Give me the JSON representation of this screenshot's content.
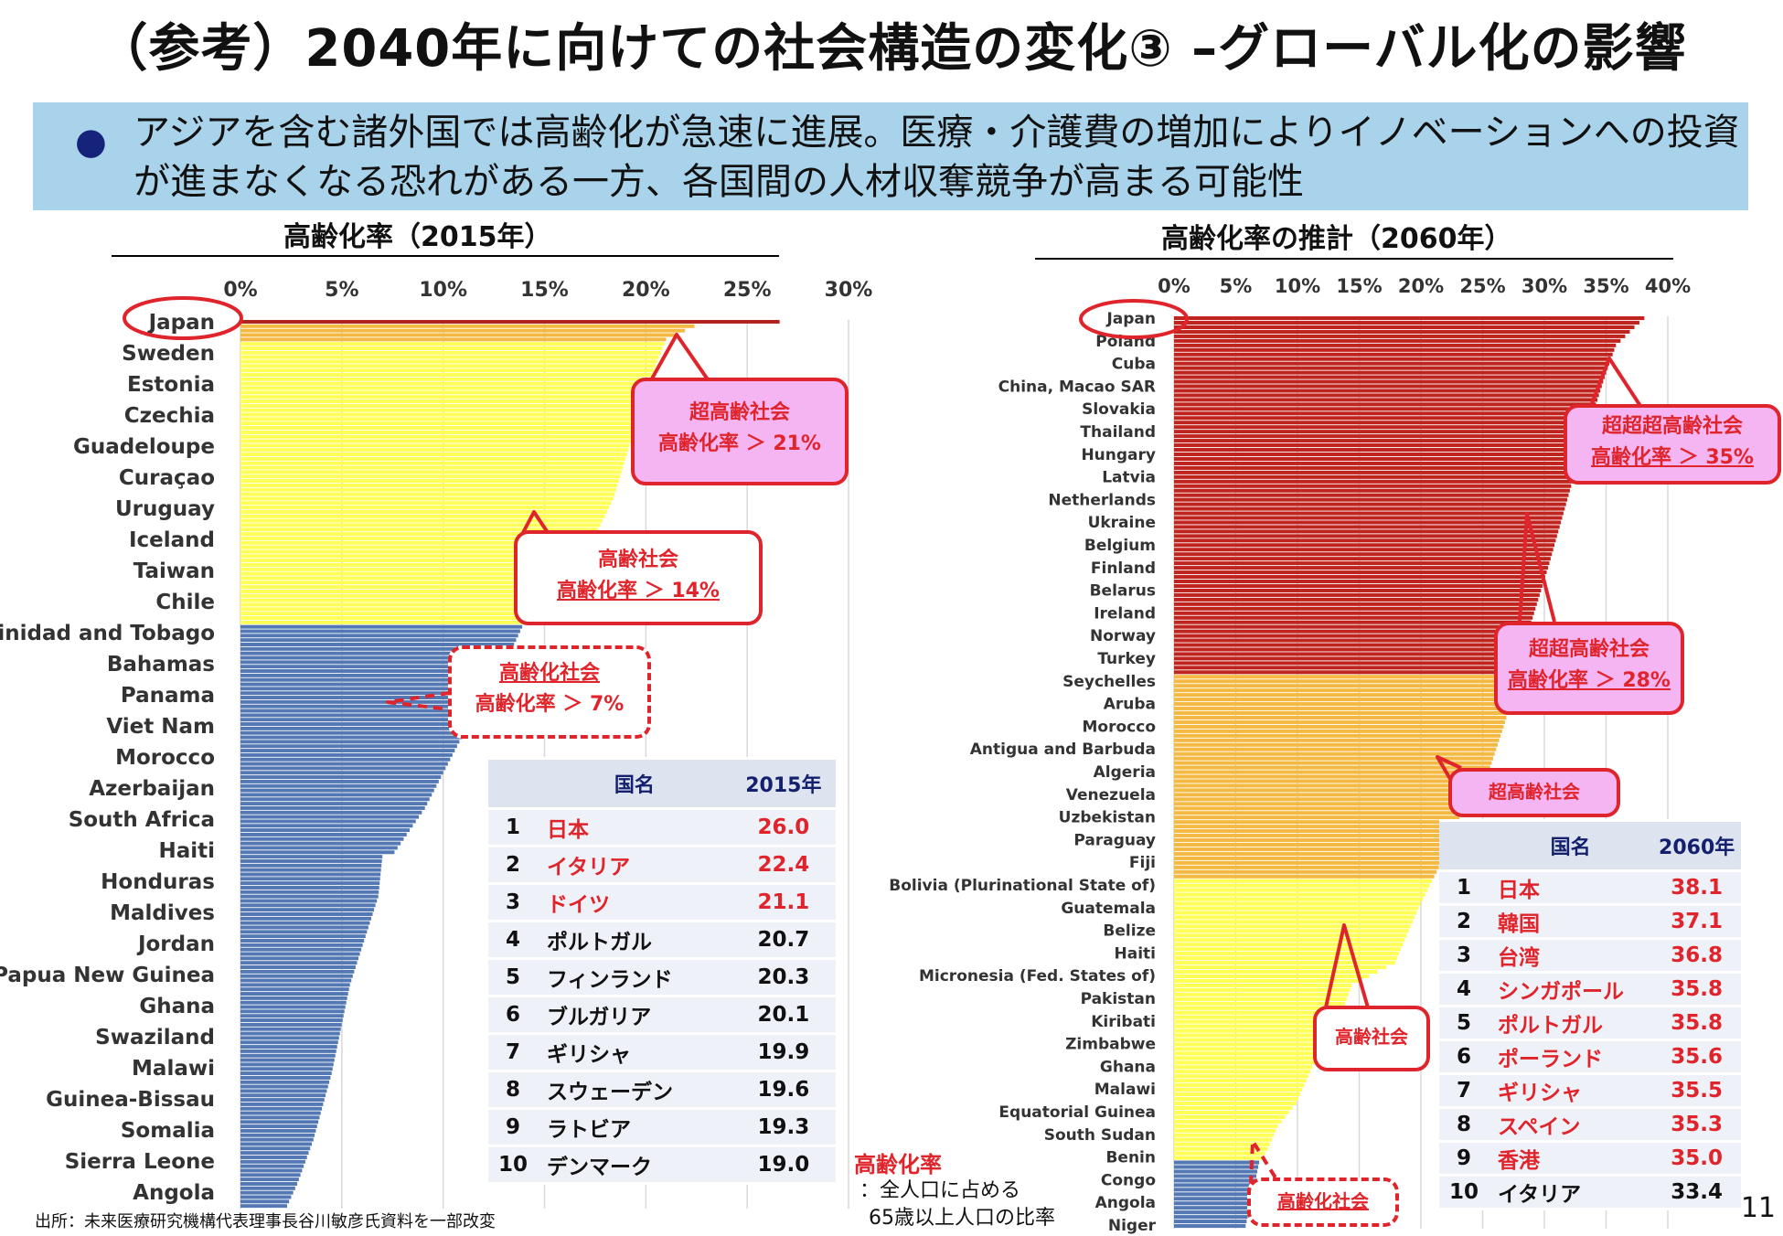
{
  "title": "（参考）2040年に向けての社会構造の変化③ –グローバル化の影響",
  "banner_text": "アジアを含む諸外国では高齢化が急速に進展。医療・介護費の増加によりイノベーションへの投資が進まなくなる恐れがある一方、各国間の人材収奪競争が高まる可能性",
  "source": "出所：未来医療研究機構代表理事長谷川敏彦氏資料を一部改変",
  "page_number": "11",
  "definition": {
    "term": "高齢化率",
    "line1": "：全人口に占める",
    "line2": "65歳以上人口の比率"
  },
  "colors": {
    "japan": "#b0221e",
    "super_super": "#c0241f",
    "super": "#f4b942",
    "aged": "#ffff55",
    "aging": "#5478b3",
    "callout_red": "#e0242b",
    "callout_pink": "#f5b5f3"
  },
  "callouts_2015": [
    {
      "name": "超高齢社会",
      "rule": "高齢化率 ＞ 21%"
    },
    {
      "name": "高齢社会",
      "rule": "高齢化率 ＞ 14%"
    },
    {
      "name": "高齢化社会",
      "rule": "高齢化率 ＞ 7%"
    }
  ],
  "callouts_2060": [
    {
      "name": "超超超高齢社会",
      "rule": "高齢化率 ＞ 35%"
    },
    {
      "name": "超超高齢社会",
      "rule": "高齢化率 ＞ 28%"
    },
    {
      "name": "超高齢社会"
    },
    {
      "name": "高齢社会"
    },
    {
      "name": "高齢化社会"
    }
  ],
  "table_2015": {
    "headers": [
      "国名",
      "2015年"
    ],
    "rows": [
      {
        "rank": "1",
        "country": "日本",
        "value": "26.0",
        "red": true
      },
      {
        "rank": "2",
        "country": "イタリア",
        "value": "22.4",
        "red": true
      },
      {
        "rank": "3",
        "country": "ドイツ",
        "value": "21.1",
        "red": true
      },
      {
        "rank": "4",
        "country": "ポルトガル",
        "value": "20.7",
        "red": false
      },
      {
        "rank": "5",
        "country": "フィンランド",
        "value": "20.3",
        "red": false
      },
      {
        "rank": "6",
        "country": "ブルガリア",
        "value": "20.1",
        "red": false
      },
      {
        "rank": "7",
        "country": "ギリシャ",
        "value": "19.9",
        "red": false
      },
      {
        "rank": "8",
        "country": "スウェーデン",
        "value": "19.6",
        "red": false
      },
      {
        "rank": "9",
        "country": "ラトビア",
        "value": "19.3",
        "red": false
      },
      {
        "rank": "10",
        "country": "デンマーク",
        "value": "19.0",
        "red": false
      }
    ]
  },
  "table_2060": {
    "headers": [
      "国名",
      "2060年"
    ],
    "rows": [
      {
        "rank": "1",
        "country": "日本",
        "value": "38.1",
        "red": true
      },
      {
        "rank": "2",
        "country": "韓国",
        "value": "37.1",
        "red": true
      },
      {
        "rank": "3",
        "country": "台湾",
        "value": "36.8",
        "red": true
      },
      {
        "rank": "4",
        "country": "シンガポール",
        "value": "35.8",
        "red": true
      },
      {
        "rank": "5",
        "country": "ポルトガル",
        "value": "35.8",
        "red": true
      },
      {
        "rank": "6",
        "country": "ポーランド",
        "value": "35.6",
        "red": true
      },
      {
        "rank": "7",
        "country": "ギリシャ",
        "value": "35.5",
        "red": true
      },
      {
        "rank": "8",
        "country": "スペイン",
        "value": "35.3",
        "red": true
      },
      {
        "rank": "9",
        "country": "香港",
        "value": "35.0",
        "red": true
      },
      {
        "rank": "10",
        "country": "イタリア",
        "value": "33.4",
        "red": false
      }
    ]
  },
  "chart_data": [
    {
      "type": "bar",
      "orientation": "horizontal",
      "title": "高齢化率（2015年）",
      "xlim": [
        0,
        30
      ],
      "tick_labels": [
        "0%",
        "5%",
        "10%",
        "15%",
        "20%",
        "25%",
        "30%"
      ],
      "bar_count": 201,
      "labeled_categories": [
        "Japan",
        "Sweden",
        "Estonia",
        "Czechia",
        "Guadeloupe",
        "Curaçao",
        "Uruguay",
        "Iceland",
        "Taiwan",
        "Chile",
        "Trinidad and Tobago",
        "Bahamas",
        "Panama",
        "Viet Nam",
        "Morocco",
        "Azerbaijan",
        "South Africa",
        "Haiti",
        "Honduras",
        "Maldives",
        "Jordan",
        "Papua New Guinea",
        "Ghana",
        "Swaziland",
        "Malawi",
        "Guinea-Bissau",
        "Somalia",
        "Sierra Leone",
        "Angola"
      ],
      "curve": [
        [
          0,
          26.6
        ],
        [
          1,
          22.4
        ],
        [
          4,
          21.0
        ],
        [
          12,
          20.3
        ],
        [
          25,
          19.4
        ],
        [
          40,
          18.4
        ],
        [
          55,
          16.8
        ],
        [
          62,
          15.8
        ],
        [
          64,
          14.5
        ],
        [
          68,
          14.0
        ],
        [
          80,
          12.8
        ],
        [
          95,
          10.8
        ],
        [
          110,
          9.1
        ],
        [
          120,
          7.6
        ],
        [
          121,
          7.0
        ],
        [
          130,
          6.8
        ],
        [
          150,
          5.4
        ],
        [
          170,
          4.5
        ],
        [
          185,
          3.6
        ],
        [
          195,
          2.8
        ],
        [
          200,
          2.3
        ]
      ],
      "thresholds": {
        "super_aged": 21,
        "aged": 14,
        "aging": 7
      }
    },
    {
      "type": "bar",
      "orientation": "horizontal",
      "title": "高齢化率の推計（2060年）",
      "xlim": [
        0,
        40
      ],
      "tick_labels": [
        "0%",
        "5%",
        "10%",
        "15%",
        "20%",
        "25%",
        "30%",
        "35%",
        "40%"
      ],
      "bar_count": 201,
      "labeled_categories": [
        "Japan",
        "Poland",
        "Cuba",
        "China, Macao SAR",
        "Slovakia",
        "Thailand",
        "Hungary",
        "Latvia",
        "Netherlands",
        "Ukraine",
        "Belgium",
        "Finland",
        "Belarus",
        "Ireland",
        "Norway",
        "Turkey",
        "Seychelles",
        "Aruba",
        "Morocco",
        "Antigua and Barbuda",
        "Algeria",
        "Venezuela",
        "Uzbekistan",
        "Paraguay",
        "Fiji",
        "Bolivia (Plurinational State of)",
        "Guatemala",
        "Belize",
        "Haiti",
        "Micronesia (Fed. States of)",
        "Pakistan",
        "Kiribati",
        "Zimbabwe",
        "Ghana",
        "Malawi",
        "Equatorial Guinea",
        "South Sudan",
        "Benin",
        "Congo",
        "Angola",
        "Niger"
      ],
      "curve": [
        [
          0,
          38.1
        ],
        [
          2,
          37.3
        ],
        [
          6,
          35.8
        ],
        [
          12,
          35.0
        ],
        [
          30,
          32.9
        ],
        [
          55,
          30.3
        ],
        [
          70,
          28.6
        ],
        [
          78,
          28.0
        ],
        [
          90,
          26.7
        ],
        [
          104,
          25.0
        ],
        [
          108,
          23.4
        ],
        [
          118,
          22.0
        ],
        [
          130,
          19.8
        ],
        [
          142,
          17.9
        ],
        [
          147,
          14.4
        ],
        [
          155,
          13.3
        ],
        [
          165,
          11.2
        ],
        [
          173,
          9.9
        ],
        [
          178,
          8.4
        ],
        [
          183,
          7.6
        ],
        [
          186,
          6.9
        ],
        [
          195,
          6.2
        ],
        [
          200,
          5.8
        ]
      ],
      "thresholds": {
        "super_super_super": 35,
        "super_super": 28,
        "super_aged": 21,
        "aged": 14,
        "aging": 7
      }
    }
  ]
}
